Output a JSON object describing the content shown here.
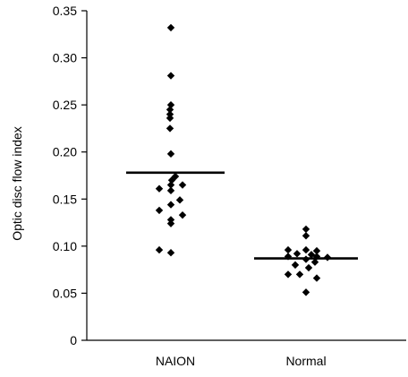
{
  "chart_data": {
    "type": "scatter",
    "title": "",
    "xlabel": "",
    "ylabel": "Optic disc flow index",
    "categories": [
      "NAION",
      "Normal"
    ],
    "ylim": [
      0,
      0.35
    ],
    "y_ticks": [
      "0",
      "0.05",
      "0.10",
      "0.15",
      "0.20",
      "0.25",
      "0.30",
      "0.35"
    ],
    "grid": false,
    "marker": "diamond",
    "series": [
      {
        "category": "NAION",
        "mean": 0.178,
        "points": [
          {
            "offset": -0.05,
            "y": 0.332
          },
          {
            "offset": -0.05,
            "y": 0.281
          },
          {
            "offset": -0.05,
            "y": 0.25
          },
          {
            "offset": -0.06,
            "y": 0.245
          },
          {
            "offset": -0.06,
            "y": 0.24
          },
          {
            "offset": -0.06,
            "y": 0.236
          },
          {
            "offset": -0.06,
            "y": 0.225
          },
          {
            "offset": -0.05,
            "y": 0.198
          },
          {
            "offset": -0.04,
            "y": 0.17
          },
          {
            "offset": 0.0,
            "y": 0.174
          },
          {
            "offset": -0.05,
            "y": 0.165
          },
          {
            "offset": 0.08,
            "y": 0.165
          },
          {
            "offset": -0.18,
            "y": 0.161
          },
          {
            "offset": -0.05,
            "y": 0.159
          },
          {
            "offset": 0.05,
            "y": 0.149
          },
          {
            "offset": -0.05,
            "y": 0.144
          },
          {
            "offset": -0.18,
            "y": 0.138
          },
          {
            "offset": 0.08,
            "y": 0.133
          },
          {
            "offset": -0.05,
            "y": 0.128
          },
          {
            "offset": -0.05,
            "y": 0.124
          },
          {
            "offset": -0.18,
            "y": 0.096
          },
          {
            "offset": -0.05,
            "y": 0.093
          }
        ]
      },
      {
        "category": "Normal",
        "mean": 0.087,
        "points": [
          {
            "offset": 0.0,
            "y": 0.118
          },
          {
            "offset": 0.0,
            "y": 0.111
          },
          {
            "offset": -0.2,
            "y": 0.096
          },
          {
            "offset": 0.0,
            "y": 0.096
          },
          {
            "offset": 0.12,
            "y": 0.095
          },
          {
            "offset": -0.1,
            "y": 0.092
          },
          {
            "offset": -0.2,
            "y": 0.089
          },
          {
            "offset": 0.06,
            "y": 0.091
          },
          {
            "offset": 0.12,
            "y": 0.089
          },
          {
            "offset": 0.24,
            "y": 0.088
          },
          {
            "offset": 0.0,
            "y": 0.086
          },
          {
            "offset": 0.1,
            "y": 0.083
          },
          {
            "offset": -0.12,
            "y": 0.08
          },
          {
            "offset": 0.03,
            "y": 0.077
          },
          {
            "offset": -0.2,
            "y": 0.07
          },
          {
            "offset": -0.07,
            "y": 0.07
          },
          {
            "offset": 0.12,
            "y": 0.066
          },
          {
            "offset": 0.0,
            "y": 0.051
          }
        ]
      }
    ]
  }
}
